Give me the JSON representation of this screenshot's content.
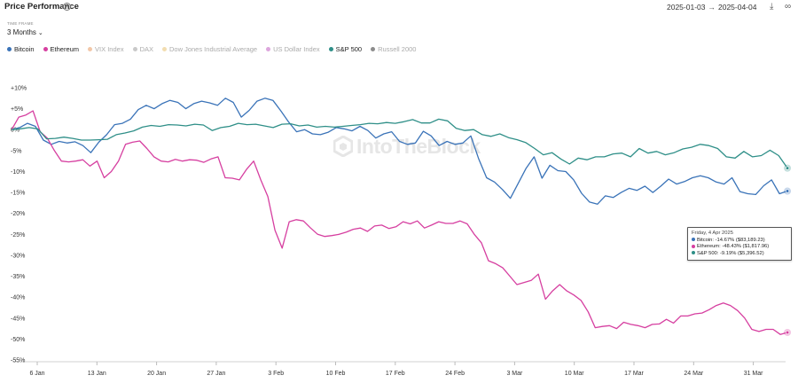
{
  "header": {
    "title": "Price Performance",
    "date_start": "2025-01-03",
    "date_end": "2025-04-04",
    "arrow": "→"
  },
  "timeframe": {
    "label": "TIME FRAME",
    "value": "3 Months"
  },
  "legend": [
    {
      "name": "Bitcoin",
      "color": "#3a73b8",
      "active": true
    },
    {
      "name": "Ethereum",
      "color": "#d63fa0",
      "active": true
    },
    {
      "name": "VIX Index",
      "color": "#f2c7a8",
      "active": false
    },
    {
      "name": "DAX",
      "color": "#c9c9c9",
      "active": false
    },
    {
      "name": "Dow Jones Industrial Average",
      "color": "#f2ddb0",
      "active": false
    },
    {
      "name": "US Dollar Index",
      "color": "#dda6dd",
      "active": false
    },
    {
      "name": "S&P 500",
      "color": "#2f8f88",
      "active": true
    },
    {
      "name": "Russell 2000",
      "color": "#8c8c8c",
      "active": false
    }
  ],
  "watermark": "IntoTheBlock",
  "tooltip": {
    "date": "Friday, 4 Apr 2025",
    "rows": [
      {
        "text": "Bitcoin: -14.67% ($83,189.23)",
        "color": "#3a73b8"
      },
      {
        "text": "Ethereum: -48.43% ($1,817.96)",
        "color": "#d63fa0"
      },
      {
        "text": "S&P 500: -9.19% ($5,396.52)",
        "color": "#2f8f88"
      }
    ]
  },
  "chart_data": {
    "type": "line",
    "ylabel": "",
    "xlabel": "",
    "ylim": [
      -55,
      10
    ],
    "y_ticks": [
      10,
      5,
      0,
      -5,
      -10,
      -15,
      -20,
      -25,
      -30,
      -35,
      -40,
      -45,
      -50,
      -55
    ],
    "y_tick_labels": [
      "+10%",
      "+5%",
      "0%",
      "-5%",
      "-10%",
      "-15%",
      "-20%",
      "-25%",
      "-30%",
      "-35%",
      "-40%",
      "-45%",
      "-50%",
      "-55%"
    ],
    "x_ticks": [
      "6 Jan",
      "13 Jan",
      "20 Jan",
      "27 Jan",
      "3 Feb",
      "10 Feb",
      "17 Feb",
      "24 Feb",
      "3 Mar",
      "10 Mar",
      "17 Mar",
      "24 Mar",
      "31 Mar"
    ],
    "x_start_day_offset": -3,
    "x_day_count": 91,
    "grid": false,
    "series": [
      {
        "name": "Bitcoin",
        "color": "#3a73b8",
        "values": [
          0,
          0.5,
          1.5,
          0.8,
          -2.5,
          -3.5,
          -2.8,
          -3.2,
          -2.9,
          -3.8,
          -5.5,
          -3,
          -1.2,
          1.2,
          1.5,
          2.5,
          4.8,
          5.8,
          5,
          6.2,
          7,
          6.5,
          5,
          6.2,
          6.8,
          6.4,
          5.8,
          7.5,
          6.5,
          3,
          4.6,
          6.8,
          7.5,
          7,
          4.5,
          1.8,
          -0.5,
          0,
          -1,
          -1.2,
          -0.6,
          0.5,
          0.2,
          -0.3,
          0.8,
          -0.2,
          -2,
          -1,
          -0.5,
          -2.8,
          -3.5,
          -3.2,
          -0.4,
          -1.5,
          -3.8,
          -2.8,
          -3.5,
          -3.2,
          -1.5,
          -7,
          -11.5,
          -12.5,
          -14.3,
          -16.4,
          -12.8,
          -9.2,
          -6.5,
          -11.6,
          -8.5,
          -9.8,
          -10,
          -12,
          -15.2,
          -17.3,
          -17.8,
          -15.8,
          -16.2,
          -15,
          -14,
          -14.5,
          -13.5,
          -15,
          -13.5,
          -11.8,
          -13,
          -12.4,
          -11.5,
          -11,
          -11.5,
          -12.5,
          -13,
          -11.5,
          -14.8,
          -15.3,
          -15.5,
          -13.4,
          -12,
          -15.3,
          -14.67
        ]
      },
      {
        "name": "Ethereum",
        "color": "#d63fa0",
        "values": [
          0,
          3,
          3.5,
          4.5,
          -0.5,
          -2,
          -5,
          -7.5,
          -7.7,
          -7.5,
          -7.2,
          -8.7,
          -7.5,
          -11.5,
          -10,
          -7.5,
          -3.5,
          -3,
          -2.7,
          -4.5,
          -6.5,
          -7.5,
          -7.7,
          -7.1,
          -7.5,
          -7.2,
          -7.3,
          -7.8,
          -7,
          -6.5,
          -11.5,
          -11.6,
          -12,
          -9.5,
          -7.5,
          -12,
          -16,
          -24,
          -28.3,
          -22,
          -21.5,
          -21.8,
          -23.5,
          -25,
          -25.5,
          -25.3,
          -25,
          -24.5,
          -23.8,
          -23.5,
          -24.3,
          -23,
          -22.8,
          -23.6,
          -23.2,
          -22,
          -22.5,
          -21.8,
          -23.5,
          -22.8,
          -22,
          -22.4,
          -22.4,
          -21.8,
          -22.5,
          -25,
          -27,
          -31.3,
          -32,
          -33,
          -35,
          -37,
          -36.5,
          -36,
          -34.5,
          -40.5,
          -38.5,
          -37,
          -38.5,
          -39.5,
          -40.8,
          -43.5,
          -47.3,
          -47,
          -46.8,
          -47.5,
          -46,
          -46.5,
          -46.8,
          -47.3,
          -46.5,
          -46.4,
          -45.3,
          -46.2,
          -44.5,
          -44.5,
          -44,
          -43.8,
          -43,
          -42,
          -41.4,
          -42,
          -43.2,
          -45,
          -47.7,
          -48.2,
          -47.7,
          -47.7,
          -48.9,
          -48.43
        ]
      },
      {
        "name": "S&P 500",
        "color": "#2f8f88",
        "values": [
          0,
          0.2,
          0.5,
          0.2,
          -2.2,
          -2.1,
          -1.8,
          -2.1,
          -2.5,
          -2.5,
          -2.4,
          -2.3,
          -1.2,
          -0.8,
          -0.3,
          0.6,
          1,
          0.8,
          1.2,
          1.1,
          0.9,
          1.3,
          1.1,
          -0.2,
          0.5,
          0.8,
          1.5,
          1.2,
          1.3,
          0.9,
          0.5,
          1.3,
          1.4,
          0.9,
          1.1,
          0.6,
          0.8,
          0.6,
          0.8,
          1,
          1.2,
          1.5,
          1.4,
          1.7,
          1.5,
          1.9,
          2.4,
          1.6,
          1.6,
          2.5,
          2.1,
          0.3,
          -0.2,
          0,
          -1.2,
          -1.6,
          -1,
          -1.9,
          -2.4,
          -3.1,
          -4.5,
          -6,
          -5.5,
          -7,
          -8.2,
          -6.8,
          -7.2,
          -6.5,
          -6.5,
          -5.8,
          -5.6,
          -6.5,
          -4.5,
          -5.6,
          -5.2,
          -6,
          -5.5,
          -4.6,
          -4.2,
          -3.5,
          -3.8,
          -4.5,
          -6.5,
          -6.8,
          -5.2,
          -6.5,
          -6.2,
          -4.9,
          -6.2,
          -9.19
        ]
      }
    ]
  }
}
